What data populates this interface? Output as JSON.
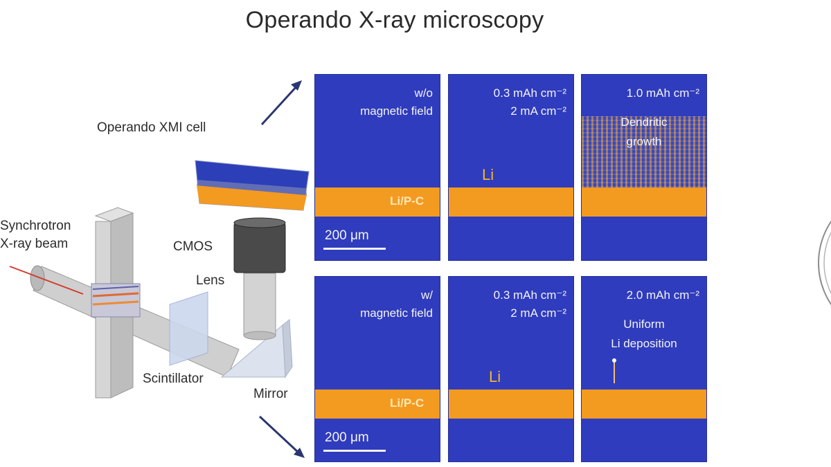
{
  "title": "Operando X-ray microscopy",
  "setup_labels": {
    "cell": "Operando XMI cell",
    "synchrotron_line1": "Synchrotron",
    "synchrotron_line2": "X-ray beam",
    "cmos": "CMOS",
    "lens": "Lens",
    "scintillator": "Scintillator",
    "mirror": "Mirror"
  },
  "panels": {
    "top": {
      "p1_line1": "w/o",
      "p1_line2": "magnetic field",
      "p1_material": "Li/P-C",
      "p1_scale": "200 μm",
      "p2_line1": "0.3 mAh cm⁻²",
      "p2_line2": "2 mA cm⁻²",
      "p2_li": "Li",
      "p3_line1": "1.0 mAh cm⁻²",
      "p3_line2": "Dendritic",
      "p3_line3": "growth"
    },
    "bottom": {
      "p1_line1": "w/",
      "p1_line2": "magnetic field",
      "p1_material": "Li/P-C",
      "p1_scale": "200 μm",
      "p2_line1": "0.3 mAh cm⁻²",
      "p2_line2": "2 mA cm⁻²",
      "p2_li": "Li",
      "p3_line1": "2.0 mAh cm⁻²",
      "p3_line2": "Uniform",
      "p3_line3": "Li deposition"
    }
  },
  "colors": {
    "panel_blue": "#2f3cbd",
    "electrode_orange": "#f39a21",
    "arrow_navy": "#2b3670"
  }
}
